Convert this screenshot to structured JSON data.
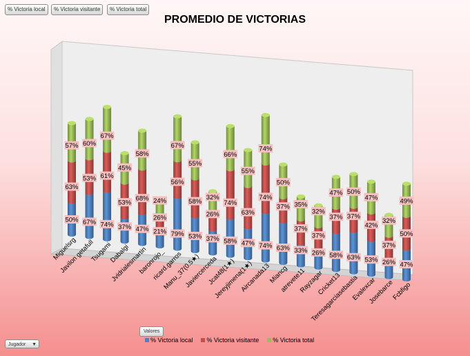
{
  "field_buttons": [
    "% Victoria local",
    "% Victoria visitante",
    "% Victoria total"
  ],
  "values_button": "Valores",
  "filter_button": {
    "label": "Jugador",
    "arrow": "▼"
  },
  "colors": {
    "local": "#4f81bd",
    "visitante": "#c0504d",
    "total": "#9bbb59"
  },
  "chart_data": {
    "type": "bar",
    "stacked": true,
    "three_d": true,
    "title": "PROMEDIO DE VICTORIAS",
    "categories": [
      "Miguelsrg",
      "Javilon getafull",
      "Tsugami",
      "Dabalgi",
      "Jvidrialesmartin",
      "baronrojo_",
      "ricard.garros",
      "Manu_37(0.5★)",
      "Javiercerceda",
      "Jcat48(1★)",
      "Jereyjimena(1★)",
      "Aircanada13",
      "Miancg",
      "atrevete11",
      "Rayzagar",
      "Cricket13",
      "Teresagarciasebastia",
      "Evalexcar",
      "Josebarce",
      "Fcbfigo"
    ],
    "series": [
      {
        "name": "% Victoria local",
        "values": [
          "50%",
          "67%",
          "74%",
          "37%",
          "47%",
          "21%",
          "79%",
          "53%",
          "37%",
          "58%",
          "47%",
          "74%",
          "63%",
          "33%",
          "26%",
          "58%",
          "63%",
          "53%",
          "26%",
          "47%"
        ]
      },
      {
        "name": "% Victoria visitante",
        "values": [
          "63%",
          "53%",
          "61%",
          "53%",
          "68%",
          "26%",
          "56%",
          "58%",
          "26%",
          "74%",
          "63%",
          "74%",
          "37%",
          "37%",
          "37%",
          "37%",
          "37%",
          "42%",
          "37%",
          "50%"
        ]
      },
      {
        "name": "% Victoria total",
        "values": [
          "57%",
          "60%",
          "67%",
          "45%",
          "58%",
          "24%",
          "67%",
          "55%",
          "32%",
          "66%",
          "55%",
          "74%",
          "50%",
          "35%",
          "32%",
          "47%",
          "50%",
          "47%",
          "32%",
          "49%"
        ]
      }
    ],
    "legend_position": "bottom"
  }
}
